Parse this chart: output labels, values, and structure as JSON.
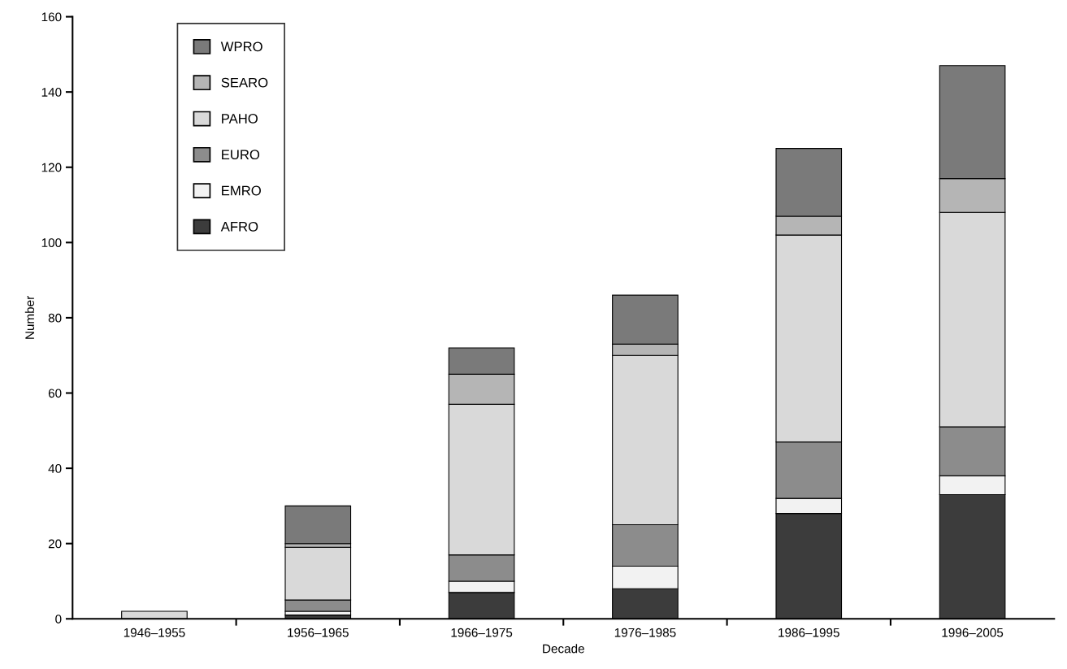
{
  "chart_data": {
    "type": "bar",
    "stacked": true,
    "xlabel": "Decade",
    "ylabel": "Number",
    "categories": [
      "1946–1955",
      "1956–1965",
      "1966–1975",
      "1976–1985",
      "1986–1995",
      "1996–2005"
    ],
    "ylim": [
      0,
      160
    ],
    "yticks": [
      0,
      20,
      40,
      60,
      80,
      100,
      120,
      140,
      160
    ],
    "grid": false,
    "legend": "top left",
    "series": [
      {
        "name": "AFRO",
        "color": "#3c3c3c",
        "values": [
          null,
          1,
          7,
          8,
          28,
          33
        ]
      },
      {
        "name": "EMRO",
        "color": "#f2f2f2",
        "values": [
          null,
          1,
          3,
          6,
          4,
          5
        ]
      },
      {
        "name": "EURO",
        "color": "#8c8c8c",
        "values": [
          null,
          3,
          7,
          11,
          15,
          13
        ]
      },
      {
        "name": "PAHO",
        "color": "#d9d9d9",
        "values": [
          2,
          14,
          40,
          45,
          55,
          57
        ]
      },
      {
        "name": "SEARO",
        "color": "#b5b5b5",
        "values": [
          null,
          1,
          8,
          3,
          5,
          9
        ]
      },
      {
        "name": "WPRO",
        "color": "#7a7a7a",
        "values": [
          null,
          10,
          7,
          13,
          18,
          30
        ]
      }
    ]
  }
}
